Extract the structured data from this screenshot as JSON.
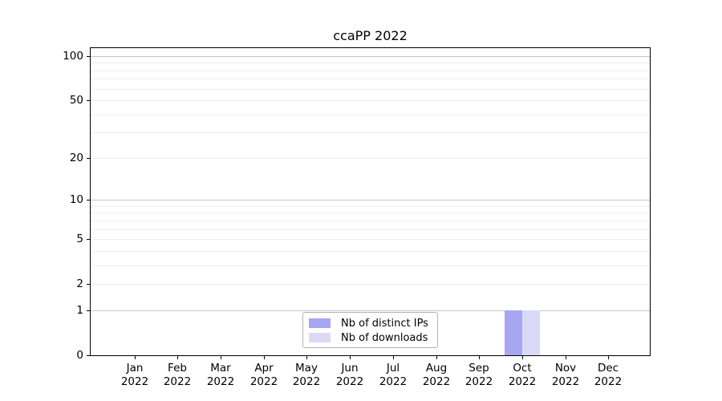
{
  "chart_data": {
    "type": "bar",
    "title": "ccaPP 2022",
    "categories": [
      "Jan",
      "Feb",
      "Mar",
      "Apr",
      "May",
      "Jun",
      "Jul",
      "Aug",
      "Sep",
      "Oct",
      "Nov",
      "Dec"
    ],
    "category_year": "2022",
    "series": [
      {
        "name": "Nb of distinct IPs",
        "color": "#a6a6f2",
        "values": [
          0,
          0,
          0,
          0,
          0,
          0,
          0,
          0,
          0,
          1,
          0,
          0
        ]
      },
      {
        "name": "Nb of downloads",
        "color": "#dadaf8",
        "values": [
          0,
          0,
          0,
          0,
          0,
          0,
          0,
          0,
          0,
          1,
          0,
          0
        ]
      }
    ],
    "yscale": "log1p",
    "yticks": [
      0,
      1,
      2,
      5,
      10,
      20,
      50,
      100
    ],
    "ylim": [
      0,
      113
    ],
    "grid": {
      "major_values": [
        1,
        10,
        100
      ],
      "minor_values": [
        2,
        3,
        4,
        5,
        6,
        7,
        8,
        9,
        20,
        30,
        40,
        50,
        60,
        70,
        80,
        90
      ],
      "major_color": "#c6c6c6",
      "minor_color": "#ededed"
    },
    "legend": {
      "position": "lower center"
    },
    "axis_color": "#000000",
    "background_color": "#ffffff"
  }
}
